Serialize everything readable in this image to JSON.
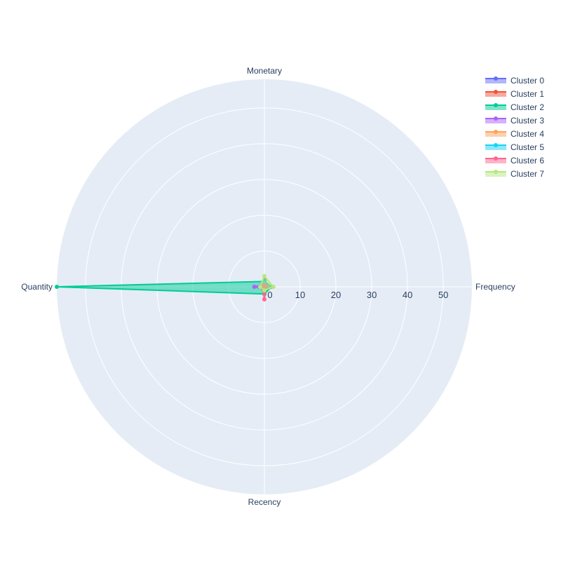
{
  "chart_data": {
    "type": "radar",
    "axes": [
      "Frequency",
      "Monetary",
      "Quantity",
      "Recency"
    ],
    "radial_range": [
      0,
      58
    ],
    "radial_ticks": [
      0,
      10,
      20,
      30,
      40,
      50
    ],
    "grid": true,
    "legend_position": "top-right",
    "series": [
      {
        "name": "Cluster 0",
        "color": "#636efa",
        "values": [
          1.2,
          2.0,
          1.5,
          0.8
        ]
      },
      {
        "name": "Cluster 1",
        "color": "#ef553b",
        "values": [
          0.8,
          0.6,
          1.0,
          2.0
        ]
      },
      {
        "name": "Cluster 2",
        "color": "#00cc96",
        "values": [
          2.0,
          1.5,
          58.0,
          2.0
        ]
      },
      {
        "name": "Cluster 3",
        "color": "#ab63fa",
        "values": [
          0.6,
          0.7,
          2.8,
          0.5
        ]
      },
      {
        "name": "Cluster 4",
        "color": "#ffa15a",
        "values": [
          1.0,
          0.8,
          1.2,
          0.9
        ]
      },
      {
        "name": "Cluster 5",
        "color": "#19d3f3",
        "values": [
          0.8,
          1.0,
          1.0,
          1.0
        ]
      },
      {
        "name": "Cluster 6",
        "color": "#ff6692",
        "values": [
          0.5,
          0.5,
          0.6,
          3.5
        ]
      },
      {
        "name": "Cluster 7",
        "color": "#b6e880",
        "values": [
          2.5,
          3.0,
          1.2,
          1.0
        ]
      }
    ]
  }
}
